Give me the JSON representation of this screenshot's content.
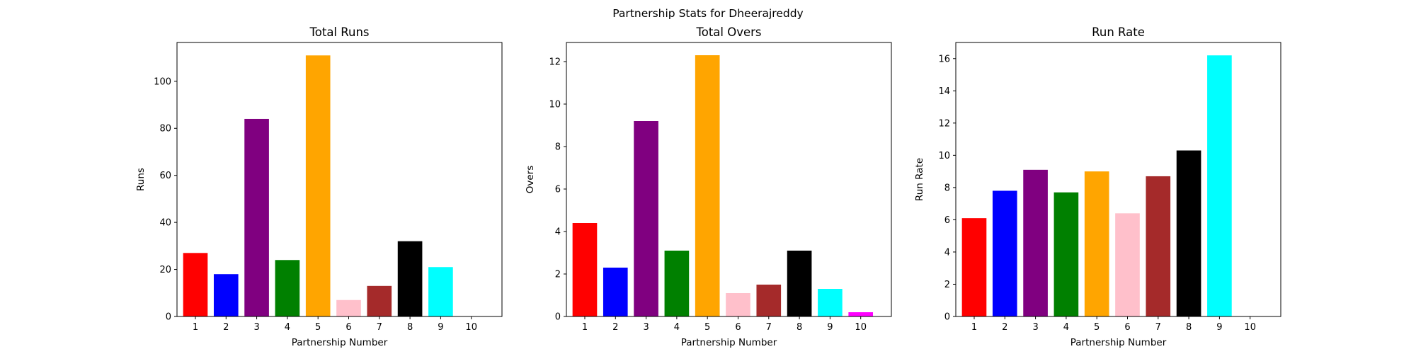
{
  "figure": {
    "suptitle": "Partnership Stats for Dheerajreddy"
  },
  "colors": [
    "#ff0000",
    "#0000ff",
    "#800080",
    "#008000",
    "#ffa500",
    "#ffc0cb",
    "#a52a2a",
    "#000000",
    "#00ffff",
    "#ff00ff"
  ],
  "chart_data": [
    {
      "type": "bar",
      "title": "Total Runs",
      "xlabel": "Partnership Number",
      "ylabel": "Runs",
      "categories": [
        "1",
        "2",
        "3",
        "4",
        "5",
        "6",
        "7",
        "8",
        "9",
        "10"
      ],
      "values": [
        27,
        18,
        84,
        24,
        111,
        7,
        13,
        32,
        21,
        0
      ],
      "ylim": [
        0,
        116.5
      ],
      "yticks": [
        0,
        20,
        40,
        60,
        80,
        100
      ],
      "grid": false,
      "legend": "none"
    },
    {
      "type": "bar",
      "title": "Total Overs",
      "xlabel": "Partnership Number",
      "ylabel": "Overs",
      "categories": [
        "1",
        "2",
        "3",
        "4",
        "5",
        "6",
        "7",
        "8",
        "9",
        "10"
      ],
      "values": [
        4.4,
        2.3,
        9.2,
        3.1,
        12.3,
        1.1,
        1.5,
        3.1,
        1.3,
        0.2
      ],
      "ylim": [
        0,
        12.9
      ],
      "yticks": [
        0,
        2,
        4,
        6,
        8,
        10,
        12
      ],
      "grid": false,
      "legend": "none"
    },
    {
      "type": "bar",
      "title": "Run Rate",
      "xlabel": "Partnership Number",
      "ylabel": "Run Rate",
      "categories": [
        "1",
        "2",
        "3",
        "4",
        "5",
        "6",
        "7",
        "8",
        "9",
        "10"
      ],
      "values": [
        6.1,
        7.8,
        9.1,
        7.7,
        9.0,
        6.4,
        8.7,
        10.3,
        16.2,
        0
      ],
      "ylim": [
        0,
        17.0
      ],
      "yticks": [
        0,
        2,
        4,
        6,
        8,
        10,
        12,
        14,
        16
      ],
      "grid": false,
      "legend": "none"
    }
  ]
}
